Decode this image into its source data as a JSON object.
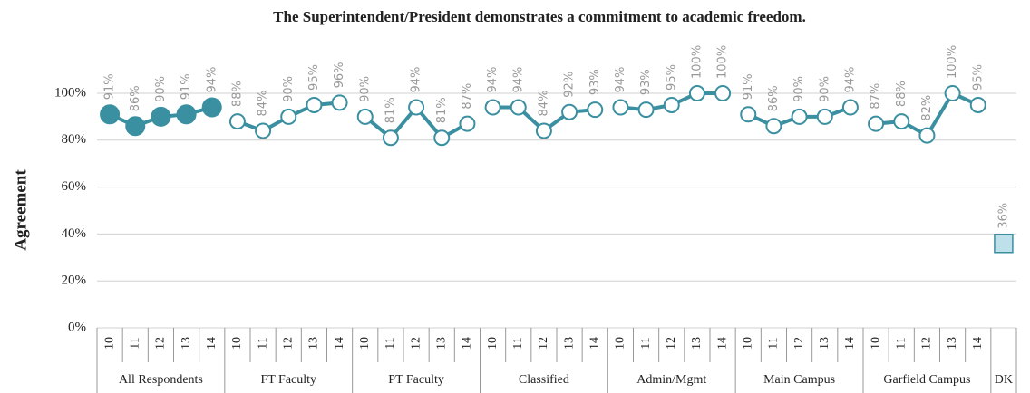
{
  "chart_data": {
    "type": "line",
    "title": "The Superintendent/President demonstrates a commitment to academic freedom.",
    "y_label": "Agreement",
    "ylim": [
      0,
      100
    ],
    "yticks": [
      {
        "value": 0,
        "label": "0%"
      },
      {
        "value": 20,
        "label": "20%"
      },
      {
        "value": 40,
        "label": "40%"
      },
      {
        "value": 60,
        "label": "60%"
      },
      {
        "value": 80,
        "label": "80%"
      },
      {
        "value": 100,
        "label": "100%"
      }
    ],
    "grid": true,
    "line_color": "#3a8fa0",
    "groups": [
      {
        "name": "All Respondents",
        "marker": "filled",
        "color": "#3a8fa0",
        "categories": [
          "10",
          "11",
          "12",
          "13",
          "14"
        ],
        "values": [
          91,
          86,
          90,
          91,
          94
        ],
        "value_labels": [
          "91%",
          "86%",
          "90%",
          "91%",
          "94%"
        ]
      },
      {
        "name": "FT Faculty",
        "marker": "open",
        "color": "#ffffff",
        "categories": [
          "10",
          "11",
          "12",
          "13",
          "14"
        ],
        "values": [
          88,
          84,
          90,
          95,
          96
        ],
        "value_labels": [
          "88%",
          "84%",
          "90%",
          "95%",
          "96%"
        ]
      },
      {
        "name": "PT Faculty",
        "marker": "open",
        "color": "#ffffff",
        "categories": [
          "10",
          "11",
          "12",
          "13",
          "14"
        ],
        "values": [
          90,
          81,
          94,
          81,
          87
        ],
        "value_labels": [
          "90%",
          "81%",
          "94%",
          "81%",
          "87%"
        ]
      },
      {
        "name": "Classified",
        "marker": "open",
        "color": "#ffffff",
        "categories": [
          "10",
          "11",
          "12",
          "13",
          "14"
        ],
        "values": [
          94,
          94,
          84,
          92,
          93
        ],
        "value_labels": [
          "94%",
          "94%",
          "84%",
          "92%",
          "93%"
        ]
      },
      {
        "name": "Admin/Mgmt",
        "marker": "open",
        "color": "#ffffff",
        "categories": [
          "10",
          "11",
          "12",
          "13",
          "14"
        ],
        "values": [
          94,
          93,
          95,
          100,
          100
        ],
        "value_labels": [
          "94%",
          "93%",
          "95%",
          "100%",
          "100%"
        ]
      },
      {
        "name": "Main Campus",
        "marker": "open",
        "color": "#ffffff",
        "categories": [
          "10",
          "11",
          "12",
          "13",
          "14"
        ],
        "values": [
          91,
          86,
          90,
          90,
          94
        ],
        "value_labels": [
          "91%",
          "86%",
          "90%",
          "90%",
          "94%"
        ]
      },
      {
        "name": "Garfield Campus",
        "marker": "open",
        "color": "#ffffff",
        "categories": [
          "10",
          "11",
          "12",
          "13",
          "14"
        ],
        "values": [
          87,
          88,
          82,
          100,
          95
        ],
        "value_labels": [
          "87%",
          "88%",
          "82%",
          "100%",
          "95%"
        ]
      },
      {
        "name": "DK",
        "marker": "square",
        "color": "#bde0ea",
        "categories": [
          null
        ],
        "values": [
          36
        ],
        "value_labels": [
          "36%"
        ]
      }
    ]
  }
}
